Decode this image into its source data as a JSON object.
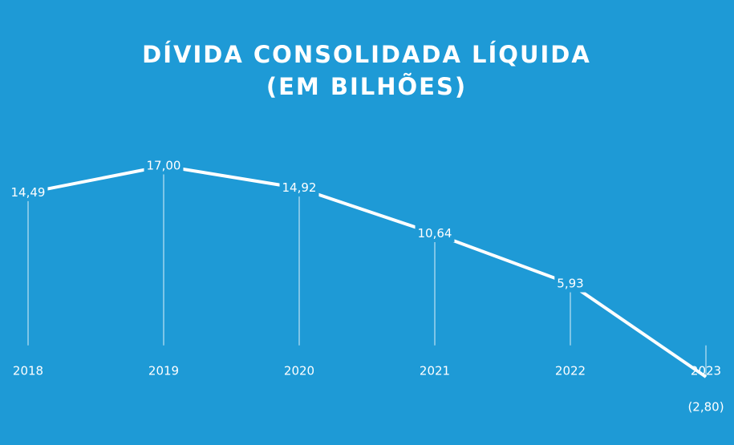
{
  "chart_data": {
    "type": "line",
    "title": "DÍVIDA CONSOLIDADA LÍQUIDA",
    "subtitle": "(EM BILHÕES)",
    "categories": [
      "2018",
      "2019",
      "2020",
      "2021",
      "2022",
      "2023"
    ],
    "series": [
      {
        "color": "#ffffff",
        "values": [
          14.49,
          17.0,
          14.92,
          10.64,
          5.93,
          -2.8
        ],
        "value_labels": [
          "14,49",
          "17,00",
          "14,92",
          "10,64",
          "5,93",
          "(2,80)"
        ]
      }
    ],
    "drop_lines": true
  }
}
